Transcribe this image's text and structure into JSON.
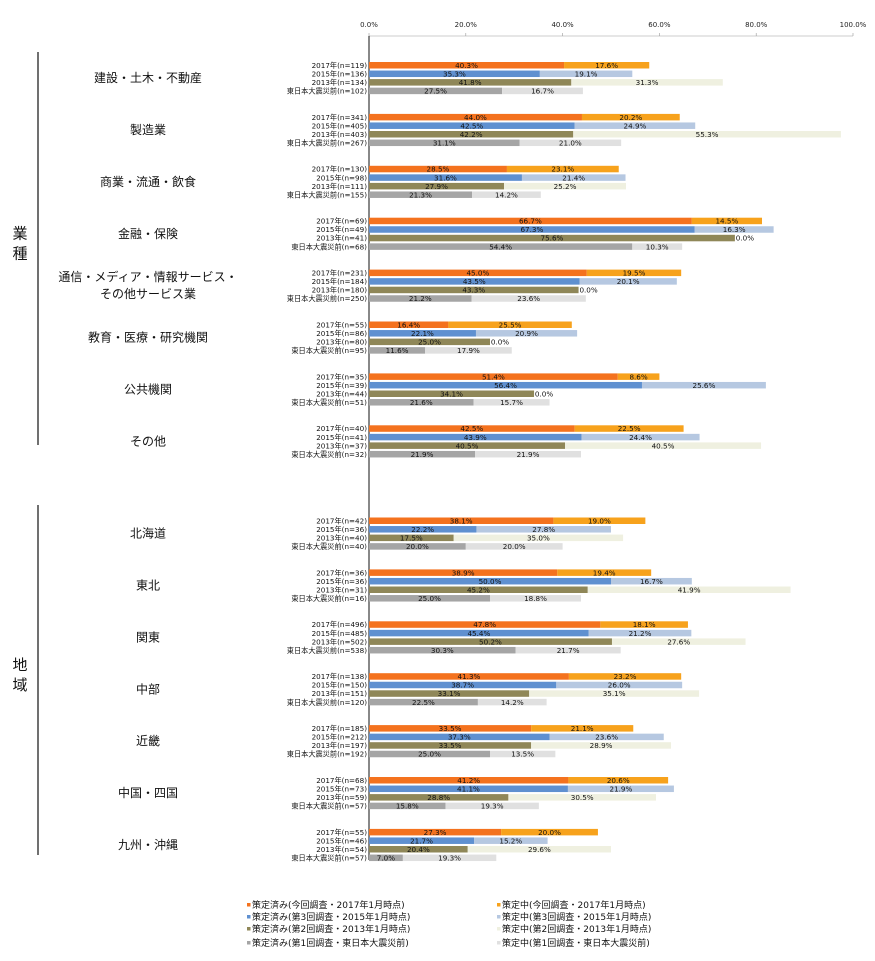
{
  "chart_data": {
    "type": "bar",
    "stacked": true,
    "orientation": "horizontal",
    "xlim": [
      0,
      100
    ],
    "x_ticks": [
      "0.0%",
      "20.0%",
      "40.0%",
      "60.0%",
      "80.0%",
      "100.0%"
    ],
    "grid": false,
    "legend_position": "bottom",
    "colors": {
      "2017": [
        "#f4721e",
        "#f7a21c"
      ],
      "2015": [
        "#5f90d0",
        "#b6c8e1"
      ],
      "2013": [
        "#8f8758",
        "#eff0e0"
      ],
      "pre": [
        "#a5a5a5",
        "#e0e0e0"
      ]
    },
    "legend": [
      {
        "key": "2017",
        "part": "done",
        "label": "策定済み(今回調査・2017年1月時点)"
      },
      {
        "key": "2017",
        "part": "wip",
        "label": "策定中(今回調査・2017年1月時点)"
      },
      {
        "key": "2015",
        "part": "done",
        "label": "策定済み(第3回調査・2015年1月時点)"
      },
      {
        "key": "2015",
        "part": "wip",
        "label": "策定中(第3回調査・2015年1月時点)"
      },
      {
        "key": "2013",
        "part": "done",
        "label": "策定済み(第2回調査・2013年1月時点)"
      },
      {
        "key": "2013",
        "part": "wip",
        "label": "策定中(第2回調査・2013年1月時点)"
      },
      {
        "key": "pre",
        "part": "done",
        "label": "策定済み(第1回調査・東日本大震災前)"
      },
      {
        "key": "pre",
        "part": "wip",
        "label": "策定中(第1回調査・東日本大震災前)"
      }
    ],
    "sections": [
      {
        "label": "業種",
        "groups": [
          {
            "label": "建設・土木・不動産",
            "rows": [
              {
                "key": "2017",
                "label": "2017年(n=119)",
                "done": 40.3,
                "wip": 17.6
              },
              {
                "key": "2015",
                "label": "2015年(n=136)",
                "done": 35.3,
                "wip": 19.1
              },
              {
                "key": "2013",
                "label": "2013年(n=134)",
                "done": 41.8,
                "wip": 31.3
              },
              {
                "key": "pre",
                "label": "東日本大震災前(n=102)",
                "done": 27.5,
                "wip": 16.7
              }
            ]
          },
          {
            "label": "製造業",
            "rows": [
              {
                "key": "2017",
                "label": "2017年(n=341)",
                "done": 44.0,
                "wip": 20.2
              },
              {
                "key": "2015",
                "label": "2015年(n=405)",
                "done": 42.5,
                "wip": 24.9
              },
              {
                "key": "2013",
                "label": "2013年(n=403)",
                "done": 42.2,
                "wip": 55.3
              },
              {
                "key": "pre",
                "label": "東日本大震災前(n=267)",
                "done": 31.1,
                "wip": 21.0
              }
            ]
          },
          {
            "label": "商業・流通・飲食",
            "rows": [
              {
                "key": "2017",
                "label": "2017年(n=130)",
                "done": 28.5,
                "wip": 23.1
              },
              {
                "key": "2015",
                "label": "2015年(n=98)",
                "done": 31.6,
                "wip": 21.4
              },
              {
                "key": "2013",
                "label": "2013年(n=111)",
                "done": 27.9,
                "wip": 25.2
              },
              {
                "key": "pre",
                "label": "東日本大震災前(n=155)",
                "done": 21.3,
                "wip": 14.2
              }
            ]
          },
          {
            "label": "金融・保険",
            "rows": [
              {
                "key": "2017",
                "label": "2017年(n=69)",
                "done": 66.7,
                "wip": 14.5
              },
              {
                "key": "2015",
                "label": "2015年(n=49)",
                "done": 67.3,
                "wip": 16.3
              },
              {
                "key": "2013",
                "label": "2013年(n=41)",
                "done": 75.6,
                "wip": 0.0
              },
              {
                "key": "pre",
                "label": "東日本大震災前(n=68)",
                "done": 54.4,
                "wip": 10.3
              }
            ]
          },
          {
            "label": "通信・メディア・情報サービス・\nその他サービス業",
            "rows": [
              {
                "key": "2017",
                "label": "2017年(n=231)",
                "done": 45.0,
                "wip": 19.5
              },
              {
                "key": "2015",
                "label": "2015年(n=184)",
                "done": 43.5,
                "wip": 20.1
              },
              {
                "key": "2013",
                "label": "2013年(n=180)",
                "done": 43.3,
                "wip": 0.0
              },
              {
                "key": "pre",
                "label": "東日本大震災前(n=250)",
                "done": 21.2,
                "wip": 23.6
              }
            ]
          },
          {
            "label": "教育・医療・研究機関",
            "rows": [
              {
                "key": "2017",
                "label": "2017年(n=55)",
                "done": 16.4,
                "wip": 25.5
              },
              {
                "key": "2015",
                "label": "2015年(n=86)",
                "done": 22.1,
                "wip": 20.9
              },
              {
                "key": "2013",
                "label": "2013年(n=80)",
                "done": 25.0,
                "wip": 0.0
              },
              {
                "key": "pre",
                "label": "東日本大震災前(n=95)",
                "done": 11.6,
                "wip": 17.9
              }
            ]
          },
          {
            "label": "公共機関",
            "rows": [
              {
                "key": "2017",
                "label": "2017年(n=35)",
                "done": 51.4,
                "wip": 8.6
              },
              {
                "key": "2015",
                "label": "2015年(n=39)",
                "done": 56.4,
                "wip": 25.6
              },
              {
                "key": "2013",
                "label": "2013年(n=44)",
                "done": 34.1,
                "wip": 0.0
              },
              {
                "key": "pre",
                "label": "東日本大震災前(n=51)",
                "done": 21.6,
                "wip": 15.7
              }
            ]
          },
          {
            "label": "その他",
            "rows": [
              {
                "key": "2017",
                "label": "2017年(n=40)",
                "done": 42.5,
                "wip": 22.5
              },
              {
                "key": "2015",
                "label": "2015年(n=41)",
                "done": 43.9,
                "wip": 24.4
              },
              {
                "key": "2013",
                "label": "2013年(n=37)",
                "done": 40.5,
                "wip": 40.5
              },
              {
                "key": "pre",
                "label": "東日本大震災前(n=32)",
                "done": 21.9,
                "wip": 21.9
              }
            ]
          }
        ]
      },
      {
        "label": "地域",
        "groups": [
          {
            "label": "北海道",
            "rows": [
              {
                "key": "2017",
                "label": "2017年(n=42)",
                "done": 38.1,
                "wip": 19.0
              },
              {
                "key": "2015",
                "label": "2015年(n=36)",
                "done": 22.2,
                "wip": 27.8
              },
              {
                "key": "2013",
                "label": "2013年(n=40)",
                "done": 17.5,
                "wip": 35.0
              },
              {
                "key": "pre",
                "label": "東日本大震災前(n=40)",
                "done": 20.0,
                "wip": 20.0
              }
            ]
          },
          {
            "label": "東北",
            "rows": [
              {
                "key": "2017",
                "label": "2017年(n=36)",
                "done": 38.9,
                "wip": 19.4
              },
              {
                "key": "2015",
                "label": "2015年(n=36)",
                "done": 50.0,
                "wip": 16.7
              },
              {
                "key": "2013",
                "label": "2013年(n=31)",
                "done": 45.2,
                "wip": 41.9
              },
              {
                "key": "pre",
                "label": "東日本大震災前(n=16)",
                "done": 25.0,
                "wip": 18.8
              }
            ]
          },
          {
            "label": "関東",
            "rows": [
              {
                "key": "2017",
                "label": "2017年(n=496)",
                "done": 47.8,
                "wip": 18.1
              },
              {
                "key": "2015",
                "label": "2015年(n=485)",
                "done": 45.4,
                "wip": 21.2
              },
              {
                "key": "2013",
                "label": "2013年(n=502)",
                "done": 50.2,
                "wip": 27.6
              },
              {
                "key": "pre",
                "label": "東日本大震災前(n=538)",
                "done": 30.3,
                "wip": 21.7
              }
            ]
          },
          {
            "label": "中部",
            "rows": [
              {
                "key": "2017",
                "label": "2017年(n=138)",
                "done": 41.3,
                "wip": 23.2
              },
              {
                "key": "2015",
                "label": "2015年(n=150)",
                "done": 38.7,
                "wip": 26.0
              },
              {
                "key": "2013",
                "label": "2013年(n=151)",
                "done": 33.1,
                "wip": 35.1
              },
              {
                "key": "pre",
                "label": "東日本大震災前(n=120)",
                "done": 22.5,
                "wip": 14.2
              }
            ]
          },
          {
            "label": "近畿",
            "rows": [
              {
                "key": "2017",
                "label": "2017年(n=185)",
                "done": 33.5,
                "wip": 21.1
              },
              {
                "key": "2015",
                "label": "2015年(n=212)",
                "done": 37.3,
                "wip": 23.6
              },
              {
                "key": "2013",
                "label": "2013年(n=197)",
                "done": 33.5,
                "wip": 28.9
              },
              {
                "key": "pre",
                "label": "東日本大震災前(n=192)",
                "done": 25.0,
                "wip": 13.5
              }
            ]
          },
          {
            "label": "中国・四国",
            "rows": [
              {
                "key": "2017",
                "label": "2017年(n=68)",
                "done": 41.2,
                "wip": 20.6
              },
              {
                "key": "2015",
                "label": "2015年(n=73)",
                "done": 41.1,
                "wip": 21.9
              },
              {
                "key": "2013",
                "label": "2013年(n=59)",
                "done": 28.8,
                "wip": 30.5
              },
              {
                "key": "pre",
                "label": "東日本大震災前(n=57)",
                "done": 15.8,
                "wip": 19.3
              }
            ]
          },
          {
            "label": "九州・沖縄",
            "rows": [
              {
                "key": "2017",
                "label": "2017年(n=55)",
                "done": 27.3,
                "wip": 20.0
              },
              {
                "key": "2015",
                "label": "2015年(n=46)",
                "done": 21.7,
                "wip": 15.2
              },
              {
                "key": "2013",
                "label": "2013年(n=54)",
                "done": 20.4,
                "wip": 29.6
              },
              {
                "key": "pre",
                "label": "東日本大震災前(n=57)",
                "done": 7.0,
                "wip": 19.3
              }
            ]
          }
        ]
      }
    ]
  }
}
